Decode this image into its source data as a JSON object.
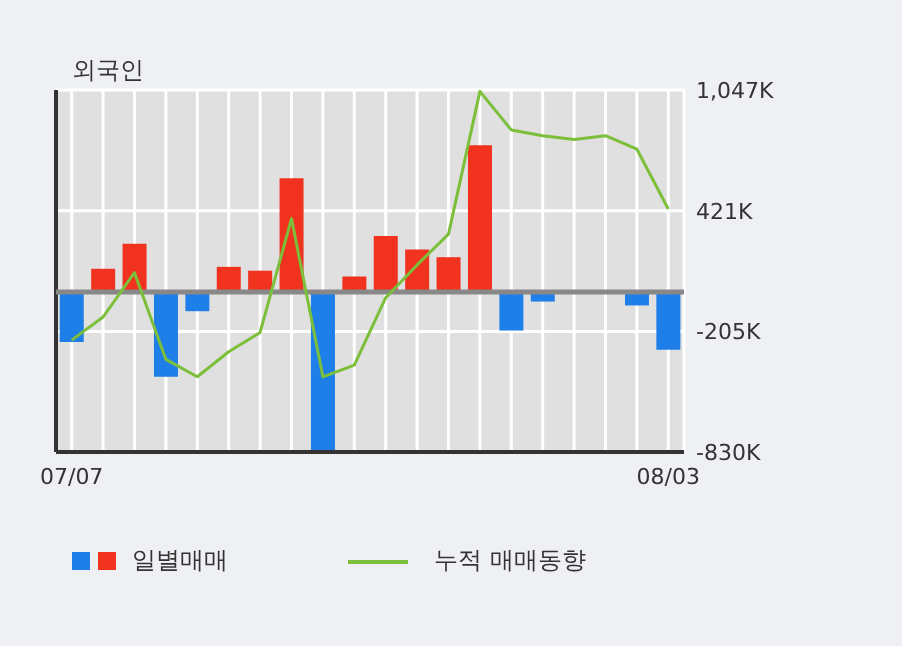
{
  "chart_data": {
    "type": "bar",
    "title": "외국인",
    "categories": [
      "07/07",
      null,
      null,
      null,
      null,
      null,
      null,
      null,
      null,
      null,
      null,
      null,
      null,
      null,
      null,
      null,
      null,
      null,
      null,
      "08/03"
    ],
    "series": [
      {
        "name": "일별매매",
        "colors": [
          "#1f7fe8",
          "#f0321e",
          "#f0321e",
          "#1f7fe8",
          "#1f7fe8",
          "#f0321e",
          "#f0321e",
          "#f0321e",
          "#1f7fe8",
          "#f0321e",
          "#f0321e",
          "#f0321e",
          "#f0321e",
          "#f0321e",
          "#1f7fe8",
          "#1f7fe8",
          "#1f7fe8",
          "#1f7fe8",
          "#1f7fe8",
          "#1f7fe8"
        ],
        "values": [
          -260,
          120,
          250,
          -440,
          -100,
          130,
          110,
          590,
          -830,
          80,
          290,
          220,
          180,
          760,
          -200,
          -50,
          0,
          0,
          -70,
          -300
        ]
      },
      {
        "name": "누적 매매동향",
        "type": "line",
        "color": "#7cbf3a",
        "values": [
          -250,
          -130,
          100,
          -350,
          -440,
          -310,
          -210,
          380,
          -440,
          -380,
          -30,
          140,
          300,
          1040,
          840,
          810,
          790,
          810,
          740,
          430
        ]
      }
    ],
    "ylim": [
      -830,
      1047
    ],
    "yticks": [
      {
        "value": 1047,
        "label": "1,047K"
      },
      {
        "value": 421,
        "label": "421K"
      },
      {
        "value": -205,
        "label": "-205K"
      },
      {
        "value": -830,
        "label": "-830K"
      }
    ],
    "ref_lines": [
      {
        "axis": "y",
        "value": 0,
        "color": "#888888"
      }
    ],
    "grid": true,
    "legend": "bottom",
    "marker": "none",
    "line_style": "solid"
  }
}
